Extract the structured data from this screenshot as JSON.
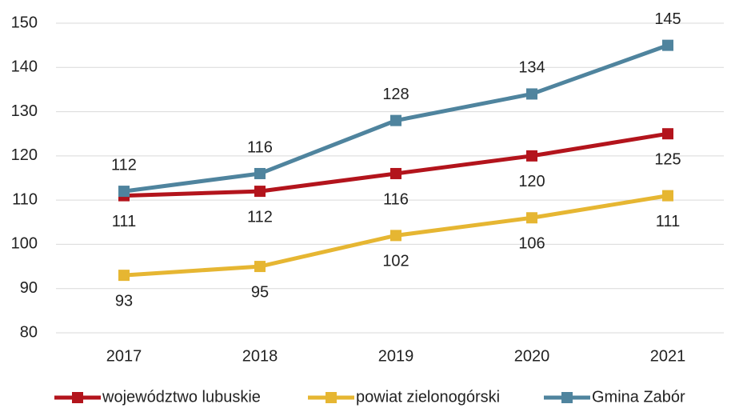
{
  "chart_data": {
    "type": "line",
    "categories": [
      "2017",
      "2018",
      "2019",
      "2020",
      "2021"
    ],
    "series": [
      {
        "name": "województwo lubuskie",
        "color": "#b3141c",
        "values": [
          111,
          112,
          116,
          120,
          125
        ],
        "label_position": "below"
      },
      {
        "name": "powiat zielonogórski",
        "color": "#e6b632",
        "values": [
          93,
          95,
          102,
          106,
          111
        ],
        "label_position": "below"
      },
      {
        "name": "Gmina Zabór",
        "color": "#4f849e",
        "values": [
          112,
          116,
          128,
          134,
          145
        ],
        "label_position": "above"
      }
    ],
    "ylim": [
      80,
      150
    ],
    "yticks": [
      80,
      90,
      100,
      110,
      120,
      130,
      140,
      150
    ],
    "grid": true,
    "legend": "bottom"
  }
}
